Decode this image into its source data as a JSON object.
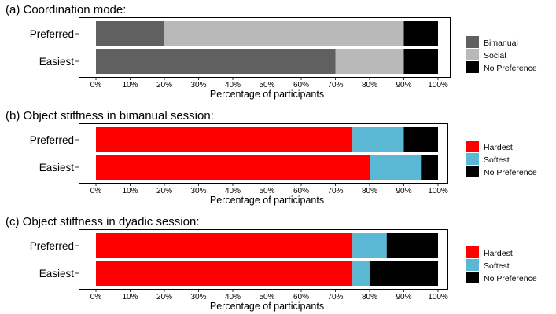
{
  "chart_data": [
    {
      "type": "bar",
      "orientation": "horizontal",
      "stacked": true,
      "title": "(a) Coordination mode:",
      "categories": [
        "Preferred",
        "Easiest"
      ],
      "series": [
        {
          "name": "Bimanual",
          "color": "#606060",
          "values": [
            20,
            70
          ]
        },
        {
          "name": "Social",
          "color": "#b9b9b9",
          "values": [
            70,
            20
          ]
        },
        {
          "name": "No Preference",
          "color": "#000000",
          "values": [
            10,
            10
          ]
        }
      ],
      "xlabel": "Percentage of participants",
      "ylabel": "",
      "xlim": [
        0,
        100
      ],
      "xticks": [
        "0%",
        "10%",
        "20%",
        "30%",
        "40%",
        "50%",
        "60%",
        "70%",
        "80%",
        "90%",
        "100%"
      ],
      "legend_position": "right",
      "grid": false
    },
    {
      "type": "bar",
      "orientation": "horizontal",
      "stacked": true,
      "title": "(b) Object stiffness in bimanual session:",
      "categories": [
        "Preferred",
        "Easiest"
      ],
      "series": [
        {
          "name": "Hardest",
          "color": "#ff0000",
          "values": [
            75,
            80
          ]
        },
        {
          "name": "Softest",
          "color": "#5bb8d4",
          "values": [
            15,
            15
          ]
        },
        {
          "name": "No Preference",
          "color": "#000000",
          "values": [
            10,
            5
          ]
        }
      ],
      "xlabel": "Percentage of participants",
      "ylabel": "",
      "xlim": [
        0,
        100
      ],
      "xticks": [
        "0%",
        "10%",
        "20%",
        "30%",
        "40%",
        "50%",
        "60%",
        "70%",
        "80%",
        "90%",
        "100%"
      ],
      "legend_position": "right",
      "grid": false
    },
    {
      "type": "bar",
      "orientation": "horizontal",
      "stacked": true,
      "title": "(c) Object stiffness in dyadic session:",
      "categories": [
        "Preferred",
        "Easiest"
      ],
      "series": [
        {
          "name": "Hardest",
          "color": "#ff0000",
          "values": [
            75,
            75
          ]
        },
        {
          "name": "Softest",
          "color": "#5bb8d4",
          "values": [
            10,
            5
          ]
        },
        {
          "name": "No Preference",
          "color": "#000000",
          "values": [
            15,
            20
          ]
        }
      ],
      "xlabel": "Percentage of participants",
      "ylabel": "",
      "xlim": [
        0,
        100
      ],
      "xticks": [
        "0%",
        "10%",
        "20%",
        "30%",
        "40%",
        "50%",
        "60%",
        "70%",
        "80%",
        "90%",
        "100%"
      ],
      "legend_position": "right",
      "grid": false
    }
  ]
}
